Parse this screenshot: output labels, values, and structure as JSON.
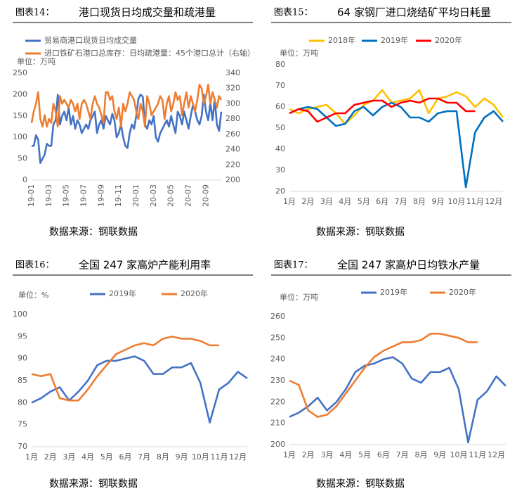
{
  "chart_data": [
    {
      "type": "line",
      "figure_label": "图表14：",
      "title": "港口现货日均成交量和疏港量",
      "unit_label": "单位：万吨",
      "source": "数据来源：钢联数据",
      "legend": "top-stacked",
      "rotate_xticks": true,
      "categories": [
        "19-01",
        null,
        null,
        null,
        null,
        null,
        null,
        null,
        "19-03",
        null,
        null,
        null,
        null,
        null,
        null,
        null,
        "19-05",
        null,
        null,
        null,
        null,
        null,
        null,
        null,
        "19-07",
        null,
        null,
        null,
        null,
        null,
        null,
        null,
        "19-09",
        null,
        null,
        null,
        null,
        null,
        null,
        null,
        "19-11",
        null,
        null,
        null,
        null,
        null,
        null,
        null,
        "20-01",
        null,
        null,
        null,
        null,
        null,
        null,
        null,
        "20-03",
        null,
        null,
        null,
        null,
        null,
        null,
        null,
        "20-05",
        null,
        null,
        null,
        null,
        null,
        null,
        null,
        "20-07",
        null,
        null,
        null,
        null,
        null,
        null,
        null,
        "20-09",
        null,
        null,
        null,
        null,
        null,
        null,
        null
      ],
      "ylim": [
        0,
        250
      ],
      "yticks": [
        0,
        50,
        100,
        150,
        200,
        250
      ],
      "y2lim": [
        200,
        340
      ],
      "y2ticks": [
        200,
        220,
        240,
        260,
        280,
        300,
        320,
        340
      ],
      "series": [
        {
          "name": "贸易商港口现货日均成交量",
          "color": "#4472C4",
          "values": [
            80,
            80,
            105,
            95,
            40,
            50,
            60,
            85,
            80,
            80,
            130,
            140,
            200,
            130,
            150,
            160,
            140,
            170,
            130,
            150,
            120,
            140,
            130,
            110,
            120,
            130,
            120,
            140,
            150,
            160,
            110,
            130,
            140,
            120,
            150,
            140,
            130,
            155,
            140,
            100,
            110,
            130,
            100,
            80,
            75,
            110,
            130,
            120,
            150,
            190,
            200,
            195,
            130,
            120,
            140,
            130,
            150,
            100,
            90,
            110,
            120,
            130,
            140,
            125,
            150,
            130,
            110,
            160,
            150,
            130,
            160,
            140,
            120,
            150,
            175,
            160,
            140,
            130,
            150,
            200,
            160,
            140,
            180,
            140,
            190,
            130,
            115,
            160
          ]
        },
        {
          "name": "进口铁矿石港口总库存：日均疏港量：45个港口总计（右轴）",
          "color": "#ED7D31",
          "axis": "y2",
          "values": [
            275,
            290,
            300,
            315,
            280,
            270,
            285,
            270,
            280,
            275,
            300,
            290,
            270,
            310,
            300,
            305,
            300,
            295,
            305,
            300,
            290,
            300,
            280,
            300,
            305,
            300,
            290,
            280,
            300,
            310,
            300,
            295,
            285,
            275,
            315,
            315,
            305,
            310,
            290,
            280,
            295,
            270,
            300,
            290,
            300,
            315,
            310,
            305,
            290,
            280,
            300,
            290,
            270,
            310,
            300,
            285,
            290,
            295,
            300,
            310,
            305,
            280,
            300,
            310,
            290,
            300,
            315,
            305,
            310,
            285,
            300,
            315,
            295,
            310,
            300,
            290,
            305,
            325,
            320,
            300,
            310,
            325,
            300,
            315,
            305,
            295,
            310,
            305
          ]
        }
      ]
    },
    {
      "type": "line",
      "figure_label": "图表15：",
      "title": "64 家钢厂进口烧结矿平均日耗量",
      "unit_label": "单位：万吨",
      "source": "数据来源：钢联数据",
      "legend": "top",
      "categories": [
        "1月",
        null,
        "2月",
        null,
        "3月",
        null,
        "4月",
        null,
        "5月",
        null,
        "6月",
        null,
        "7月",
        null,
        "8月",
        null,
        "9月",
        null,
        "10月",
        null,
        "11月",
        null,
        "12月",
        null
      ],
      "ylim": [
        20,
        80
      ],
      "yticks": [
        20,
        30,
        40,
        50,
        60,
        70,
        80
      ],
      "series": [
        {
          "name": "2018年",
          "color": "#FFC000",
          "values": [
            59,
            57,
            59,
            60,
            61,
            57,
            52,
            56,
            61,
            63,
            68,
            62,
            63,
            64,
            68,
            57,
            64,
            65,
            67,
            65,
            60,
            64,
            61,
            55
          ]
        },
        {
          "name": "2019年",
          "color": "#0070C0",
          "values": [
            57,
            59,
            60,
            59,
            55,
            51,
            52,
            58,
            60,
            56,
            60,
            62,
            60,
            55,
            55,
            53,
            57,
            58,
            58,
            22,
            48,
            55,
            58,
            53
          ]
        },
        {
          "name": "2020年",
          "color": "#FF0000",
          "values": [
            57,
            59,
            58,
            53,
            55,
            57,
            57,
            61,
            62,
            63,
            63,
            60,
            62,
            63,
            62,
            64,
            64,
            62,
            62,
            58,
            58,
            null,
            null,
            null
          ]
        }
      ]
    },
    {
      "type": "line",
      "figure_label": "图表16：",
      "title": "全国 247 家高炉产能利用率",
      "unit_label": "单位：%",
      "source": "数据来源：钢联数据",
      "legend": "top",
      "categories": [
        "1月",
        null,
        "2月",
        null,
        "3月",
        null,
        "4月",
        null,
        "5月",
        null,
        "6月",
        null,
        "7月",
        null,
        "8月",
        null,
        "9月",
        null,
        "10月",
        null,
        "11月",
        null,
        "12月",
        null
      ],
      "ylim": [
        70,
        100
      ],
      "yticks": [
        70,
        75,
        80,
        85,
        90,
        95,
        100
      ],
      "series": [
        {
          "name": "2019年",
          "color": "#4472C4",
          "values": [
            80,
            81,
            82.5,
            83.5,
            80.5,
            82.5,
            85,
            88.5,
            89.5,
            89.5,
            90,
            90.5,
            89.5,
            86.5,
            86.5,
            88,
            88,
            89,
            84.5,
            75.5,
            83,
            84.5,
            87,
            85.5
          ]
        },
        {
          "name": "2020年",
          "color": "#ED7D31",
          "values": [
            86.5,
            86,
            86.5,
            81,
            80.5,
            80.5,
            83,
            86,
            88.5,
            91,
            92,
            93,
            93.5,
            93,
            94.5,
            95,
            94.5,
            94.5,
            94,
            93,
            93,
            null,
            null,
            null
          ]
        }
      ]
    },
    {
      "type": "line",
      "figure_label": "图表17：",
      "title": "全国 247 家高炉日均铁水产量",
      "unit_label": "单位：万吨",
      "source": "数据来源：钢联数据",
      "legend": "top",
      "categories": [
        "1月",
        null,
        "2月",
        null,
        "3月",
        null,
        "4月",
        null,
        "5月",
        null,
        "6月",
        null,
        "7月",
        null,
        "8月",
        null,
        "9月",
        null,
        "10月",
        null,
        "11月",
        null,
        "12月",
        null
      ],
      "ylim": [
        200,
        260
      ],
      "yticks": [
        200,
        210,
        220,
        230,
        240,
        250,
        260
      ],
      "series": [
        {
          "name": "2019年",
          "color": "#4472C4",
          "values": [
            213,
            215,
            218,
            222,
            216,
            220,
            226,
            234,
            237,
            238,
            240,
            241,
            238,
            231,
            229,
            234,
            234,
            236,
            226,
            201,
            221,
            225,
            232,
            227.5
          ]
        },
        {
          "name": "2020年",
          "color": "#ED7D31",
          "values": [
            230,
            228,
            216,
            213,
            214,
            218,
            224,
            230,
            236,
            241,
            244,
            246,
            248,
            248,
            249,
            252,
            252,
            251,
            250,
            248,
            248,
            null,
            null,
            null
          ]
        }
      ]
    }
  ]
}
